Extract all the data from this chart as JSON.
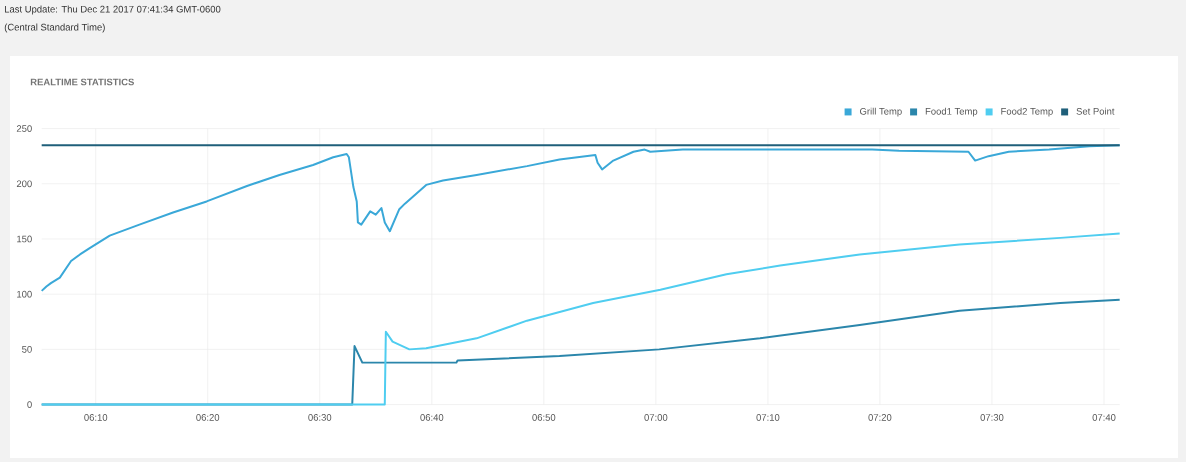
{
  "chart_data": {
    "type": "line",
    "title": "REALTIME STATISTICS",
    "annotations": [
      "Last Update: Thu Dec 21 2017 07:41:34 GMT-0600",
      "(Central Standard Time)"
    ],
    "xlim": [
      6.0863,
      7.69
    ],
    "ylim": [
      0,
      250
    ],
    "xticks": [
      {
        "value": 6.1667,
        "label": "06:10"
      },
      {
        "value": 6.3333,
        "label": "06:20"
      },
      {
        "value": 6.5,
        "label": "06:30"
      },
      {
        "value": 6.6667,
        "label": "06:40"
      },
      {
        "value": 6.8333,
        "label": "06:50"
      },
      {
        "value": 7.0,
        "label": "07:00"
      },
      {
        "value": 7.1667,
        "label": "07:10"
      },
      {
        "value": 7.3333,
        "label": "07:20"
      },
      {
        "value": 7.5,
        "label": "07:30"
      },
      {
        "value": 7.6667,
        "label": "07:40"
      }
    ],
    "yticks": [
      0,
      50,
      100,
      150,
      200,
      250
    ],
    "grid": true,
    "legend": "top right",
    "marker": "none",
    "line_style": "solid",
    "series": [
      {
        "name": "Grill Temp",
        "color": "#3aa8d8",
        "x": [
          6.0863,
          6.0933,
          6.1,
          6.1133,
          6.13,
          6.1433,
          6.1583,
          6.1875,
          6.2317,
          6.2817,
          6.3317,
          6.3917,
          6.44,
          6.49,
          6.52,
          6.54,
          6.5433,
          6.55,
          6.555,
          6.5567,
          6.5617,
          6.575,
          6.5833,
          6.5917,
          6.5967,
          6.6042,
          6.6183,
          6.6267,
          6.6583,
          6.6833,
          6.7333,
          6.8083,
          6.8567,
          6.91,
          6.9133,
          6.92,
          6.9367,
          6.9667,
          6.9833,
          6.9917,
          7.04,
          7.185,
          7.3217,
          7.3617,
          7.465,
          7.475,
          7.495,
          7.525,
          7.585,
          7.645,
          7.69
        ],
        "values": [
          103,
          107,
          110,
          115,
          130,
          136,
          142,
          153,
          163,
          174,
          184,
          198,
          208,
          217,
          224,
          227,
          224,
          197,
          184,
          165,
          163,
          175,
          172,
          178,
          165,
          157,
          177,
          182,
          199,
          203,
          208,
          216,
          222,
          226,
          219,
          213,
          221,
          229,
          231,
          229,
          231,
          231,
          231,
          230,
          229,
          221,
          225,
          229,
          231,
          234,
          235
        ]
      },
      {
        "name": "Food1 Temp",
        "color": "#2b86ab",
        "x": [
          6.0863,
          6.5483,
          6.5517,
          6.5633,
          6.6733,
          6.7033,
          6.705,
          6.8567,
          7.005,
          7.155,
          7.3033,
          7.4517,
          7.6017,
          7.69
        ],
        "values": [
          0,
          0,
          53,
          38,
          38,
          38,
          40,
          44,
          50,
          60,
          72,
          85,
          92,
          95
        ]
      },
      {
        "name": "Food2 Temp",
        "color": "#4fcdf0",
        "x": [
          6.0863,
          6.5967,
          6.5983,
          6.6083,
          6.6333,
          6.6583,
          6.7333,
          6.8083,
          6.9067,
          7.0067,
          7.105,
          7.185,
          7.3033,
          7.4517,
          7.6017,
          7.69
        ],
        "values": [
          0,
          0,
          66,
          57,
          50,
          51,
          60,
          76,
          92,
          104,
          118,
          126,
          136,
          145,
          151,
          155
        ]
      },
      {
        "name": "Set Point",
        "color": "#1f5f7a",
        "x": [
          6.0863,
          7.69
        ],
        "values": [
          235,
          235
        ]
      }
    ]
  }
}
